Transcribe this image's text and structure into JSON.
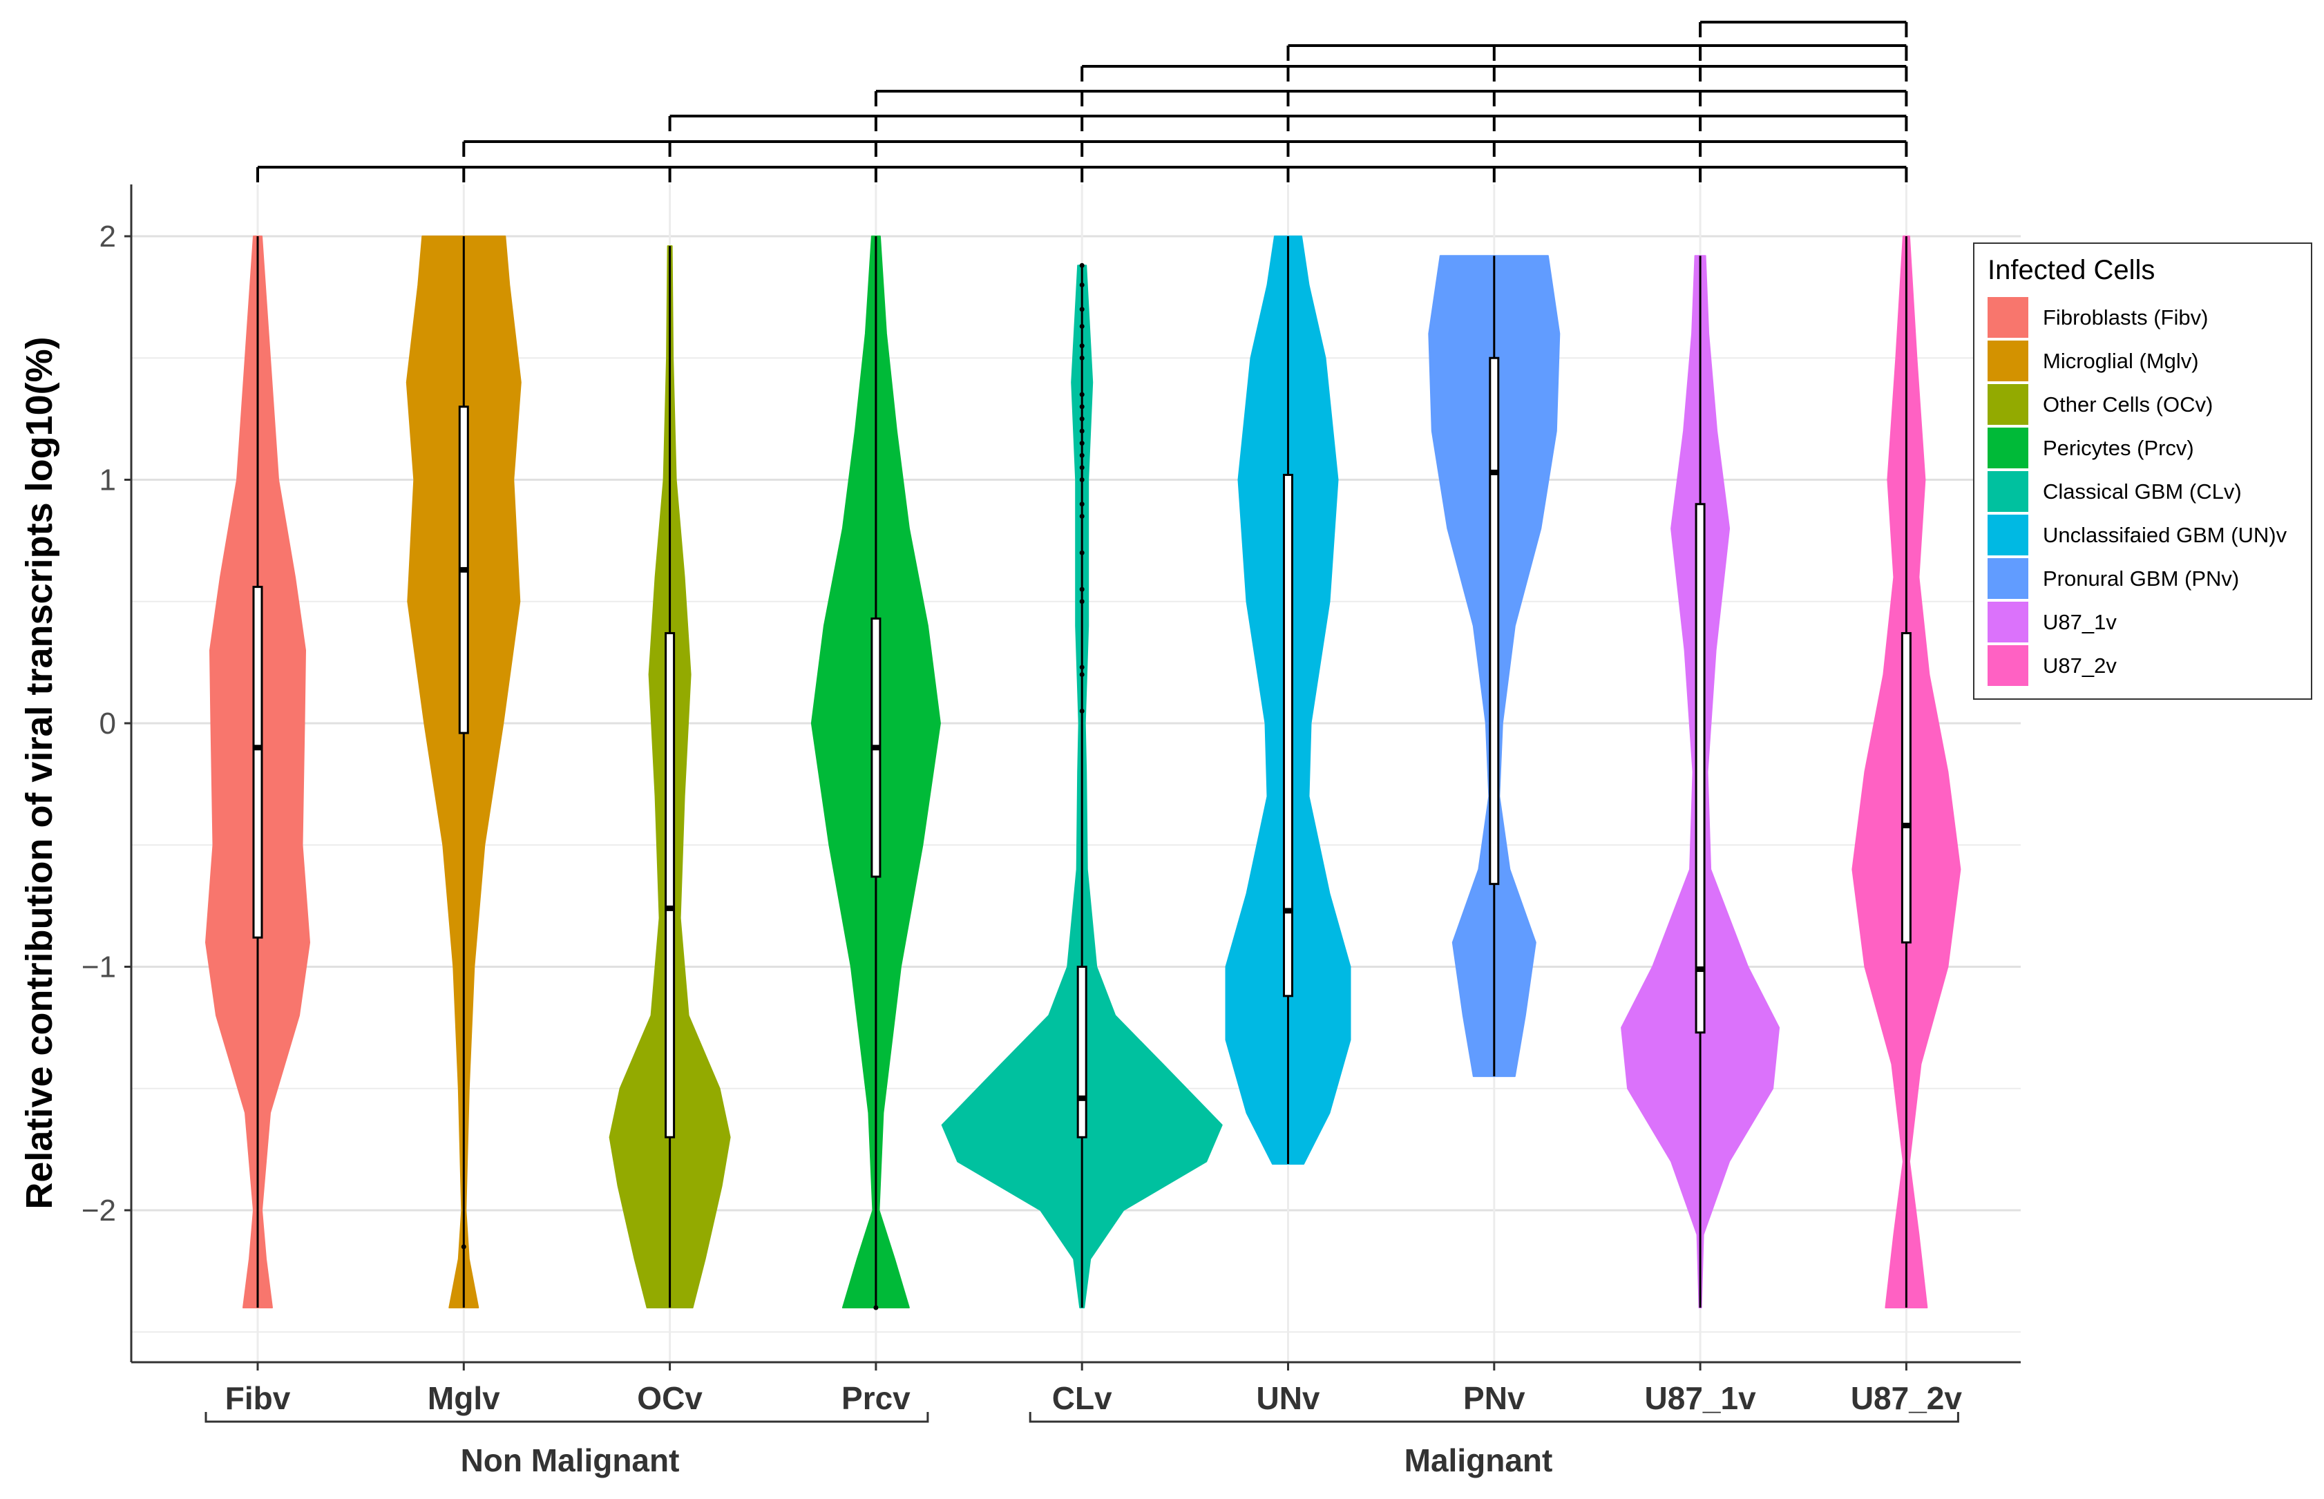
{
  "chart_data": {
    "type": "violin",
    "ylabel": "Relative contribution of viral transcripts log10(%)",
    "ylim": [
      -2.6,
      2.2
    ],
    "yticks": [
      -2,
      -1,
      0,
      1,
      2
    ],
    "ytick_labels": [
      "−2",
      "−1",
      "0",
      "1",
      "2"
    ],
    "grid": true,
    "categories": [
      "Fibv",
      "Mglv",
      "OCv",
      "Prcv",
      "CLv",
      "UNv",
      "PNv",
      "U87_1v",
      "U87_2v"
    ],
    "series": [
      {
        "name": "Fibroblasts (Fibv)",
        "category": "Fibv",
        "color": "#F8766D",
        "median": -0.1,
        "q1": -0.88,
        "q3": 0.56,
        "min": -2.4,
        "max": 2.0,
        "density": [
          [
            -2.4,
            0.14
          ],
          [
            -2.2,
            0.08
          ],
          [
            -2.0,
            0.04
          ],
          [
            -1.6,
            0.12
          ],
          [
            -1.2,
            0.4
          ],
          [
            -0.9,
            0.5
          ],
          [
            -0.5,
            0.43
          ],
          [
            0.0,
            0.45
          ],
          [
            0.3,
            0.46
          ],
          [
            0.6,
            0.36
          ],
          [
            1.0,
            0.2
          ],
          [
            1.5,
            0.12
          ],
          [
            2.0,
            0.04
          ]
        ]
      },
      {
        "name": "Microglial (Mglv)",
        "category": "Mglv",
        "color": "#D39200",
        "median": 0.63,
        "q1": -0.04,
        "q3": 1.3,
        "min": -2.4,
        "max": 2.0,
        "density": [
          [
            -2.4,
            0.14
          ],
          [
            -2.2,
            0.05
          ],
          [
            -2.0,
            0.02
          ],
          [
            -1.5,
            0.05
          ],
          [
            -1.0,
            0.1
          ],
          [
            -0.5,
            0.2
          ],
          [
            0.0,
            0.38
          ],
          [
            0.5,
            0.54
          ],
          [
            1.0,
            0.48
          ],
          [
            1.4,
            0.55
          ],
          [
            1.8,
            0.44
          ],
          [
            2.0,
            0.4
          ]
        ],
        "outliers": [
          -2.15
        ]
      },
      {
        "name": "Other Cells (OCv)",
        "category": "OCv",
        "color": "#93AA00",
        "median": -0.76,
        "q1": -1.7,
        "q3": 0.37,
        "min": -2.4,
        "max": 1.96,
        "density": [
          [
            -2.4,
            0.22
          ],
          [
            -2.2,
            0.34
          ],
          [
            -1.9,
            0.5
          ],
          [
            -1.7,
            0.58
          ],
          [
            -1.5,
            0.48
          ],
          [
            -1.2,
            0.18
          ],
          [
            -0.8,
            0.1
          ],
          [
            -0.3,
            0.14
          ],
          [
            0.2,
            0.2
          ],
          [
            0.6,
            0.14
          ],
          [
            1.0,
            0.06
          ],
          [
            1.5,
            0.03
          ],
          [
            1.96,
            0.02
          ]
        ]
      },
      {
        "name": "Pericytes (Prcv)",
        "category": "Prcv",
        "color": "#00BA38",
        "median": -0.1,
        "q1": -0.63,
        "q3": 0.43,
        "min": -2.4,
        "max": 2.0,
        "density": [
          [
            -2.4,
            0.32
          ],
          [
            -2.2,
            0.18
          ],
          [
            -2.0,
            0.03
          ],
          [
            -1.6,
            0.07
          ],
          [
            -1.0,
            0.24
          ],
          [
            -0.5,
            0.45
          ],
          [
            0.0,
            0.62
          ],
          [
            0.4,
            0.5
          ],
          [
            0.8,
            0.32
          ],
          [
            1.2,
            0.2
          ],
          [
            1.6,
            0.1
          ],
          [
            2.0,
            0.04
          ]
        ],
        "outliers": [
          -2.4
        ]
      },
      {
        "name": "Classical GBM (CLv)",
        "category": "CLv",
        "color": "#00C19F",
        "median": -1.54,
        "q1": -1.7,
        "q3": -1.0,
        "min": -2.4,
        "max": 1.88,
        "density": [
          [
            -2.4,
            0.02
          ],
          [
            -2.2,
            0.08
          ],
          [
            -2.0,
            0.4
          ],
          [
            -1.8,
            1.2
          ],
          [
            -1.65,
            1.35
          ],
          [
            -1.4,
            0.78
          ],
          [
            -1.2,
            0.32
          ],
          [
            -1.0,
            0.14
          ],
          [
            -0.6,
            0.05
          ],
          [
            -0.2,
            0.04
          ],
          [
            0.0,
            0.03
          ],
          [
            0.4,
            0.06
          ],
          [
            1.0,
            0.06
          ],
          [
            1.4,
            0.1
          ],
          [
            1.88,
            0.04
          ]
        ],
        "outliers": [
          0.05,
          0.2,
          0.23,
          0.5,
          0.55,
          0.7,
          0.85,
          0.9,
          1.0,
          1.05,
          1.1,
          1.15,
          1.2,
          1.25,
          1.3,
          1.35,
          1.5,
          1.55,
          1.63,
          1.7,
          1.8,
          1.88
        ]
      },
      {
        "name": "Unclassifaied GBM (UN)v",
        "category": "UNv",
        "color": "#00B9E3",
        "median": -0.77,
        "q1": -1.12,
        "q3": 1.02,
        "min": -1.81,
        "max": 2.0,
        "density": [
          [
            -1.81,
            0.15
          ],
          [
            -1.6,
            0.4
          ],
          [
            -1.3,
            0.6
          ],
          [
            -1.0,
            0.6
          ],
          [
            -0.7,
            0.4
          ],
          [
            -0.3,
            0.2
          ],
          [
            0.0,
            0.22
          ],
          [
            0.5,
            0.4
          ],
          [
            1.0,
            0.48
          ],
          [
            1.5,
            0.36
          ],
          [
            1.8,
            0.2
          ],
          [
            2.0,
            0.13
          ]
        ]
      },
      {
        "name": "Pronural GBM (PNv)",
        "category": "PNv",
        "color": "#619CFF",
        "median": 1.03,
        "q1": -0.66,
        "q3": 1.5,
        "min": -1.45,
        "max": 1.92,
        "density": [
          [
            -1.45,
            0.2
          ],
          [
            -1.2,
            0.3
          ],
          [
            -0.9,
            0.4
          ],
          [
            -0.6,
            0.15
          ],
          [
            -0.3,
            0.05
          ],
          [
            0.0,
            0.08
          ],
          [
            0.4,
            0.2
          ],
          [
            0.8,
            0.45
          ],
          [
            1.2,
            0.6
          ],
          [
            1.6,
            0.63
          ],
          [
            1.92,
            0.52
          ]
        ]
      },
      {
        "name": "U87_1v",
        "category": "U87_1v",
        "color": "#DB72FB",
        "median": -1.01,
        "q1": -1.27,
        "q3": 0.9,
        "min": -2.4,
        "max": 1.92,
        "density": [
          [
            -2.4,
            0.01
          ],
          [
            -2.1,
            0.03
          ],
          [
            -1.8,
            0.28
          ],
          [
            -1.5,
            0.7
          ],
          [
            -1.25,
            0.76
          ],
          [
            -1.0,
            0.46
          ],
          [
            -0.6,
            0.1
          ],
          [
            -0.2,
            0.07
          ],
          [
            0.3,
            0.15
          ],
          [
            0.8,
            0.28
          ],
          [
            1.2,
            0.16
          ],
          [
            1.6,
            0.08
          ],
          [
            1.92,
            0.05
          ]
        ]
      },
      {
        "name": "U87_2v",
        "category": "U87_2v",
        "color": "#FF61C3",
        "median": -0.42,
        "q1": -0.9,
        "q3": 0.37,
        "min": -2.4,
        "max": 2.0,
        "density": [
          [
            -2.4,
            0.2
          ],
          [
            -2.1,
            0.12
          ],
          [
            -1.8,
            0.03
          ],
          [
            -1.4,
            0.14
          ],
          [
            -1.0,
            0.4
          ],
          [
            -0.6,
            0.52
          ],
          [
            -0.2,
            0.4
          ],
          [
            0.2,
            0.22
          ],
          [
            0.6,
            0.12
          ],
          [
            1.0,
            0.18
          ],
          [
            1.5,
            0.1
          ],
          [
            2.0,
            0.03
          ]
        ]
      }
    ],
    "groups": [
      {
        "label": "Non Malignant",
        "from": "Fibv",
        "to": "Prcv"
      },
      {
        "label": "Malignant",
        "from": "CLv",
        "to": "U87_2v"
      }
    ],
    "comparison_brackets": [
      {
        "from": "Fibv",
        "to": "U87_2v",
        "ticks": [
          "Fibv",
          "Mglv",
          "OCv",
          "Prcv",
          "CLv",
          "UNv",
          "PNv",
          "U87_1v",
          "U87_2v"
        ]
      },
      {
        "from": "Mglv",
        "to": "U87_2v",
        "ticks": [
          "Mglv",
          "OCv",
          "Prcv",
          "CLv",
          "UNv",
          "PNv",
          "U87_1v",
          "U87_2v"
        ]
      },
      {
        "from": "OCv",
        "to": "U87_2v",
        "ticks": [
          "OCv",
          "Prcv",
          "CLv",
          "UNv",
          "PNv",
          "U87_1v",
          "U87_2v"
        ]
      },
      {
        "from": "Prcv",
        "to": "U87_2v",
        "ticks": [
          "Prcv",
          "CLv",
          "UNv",
          "PNv",
          "U87_1v",
          "U87_2v"
        ]
      },
      {
        "from": "CLv",
        "to": "U87_2v",
        "ticks": [
          "CLv",
          "UNv",
          "PNv",
          "U87_1v",
          "U87_2v"
        ]
      },
      {
        "from": "UNv",
        "to": "U87_2v",
        "ticks": [
          "UNv",
          "PNv",
          "U87_1v",
          "U87_2v"
        ]
      },
      {
        "from": "U87_1v",
        "to": "U87_2v",
        "ticks": [
          "U87_1v",
          "U87_2v"
        ]
      }
    ],
    "legend": {
      "title": "Infected Cells",
      "position": "right",
      "entries": [
        "Fibroblasts (Fibv)",
        "Microglial (Mglv)",
        "Other Cells (OCv)",
        "Pericytes (Prcv)",
        "Classical GBM (CLv)",
        "Unclassifaied GBM (UN)v",
        "Pronural GBM (PNv)",
        "U87_1v",
        "U87_2v"
      ]
    }
  }
}
